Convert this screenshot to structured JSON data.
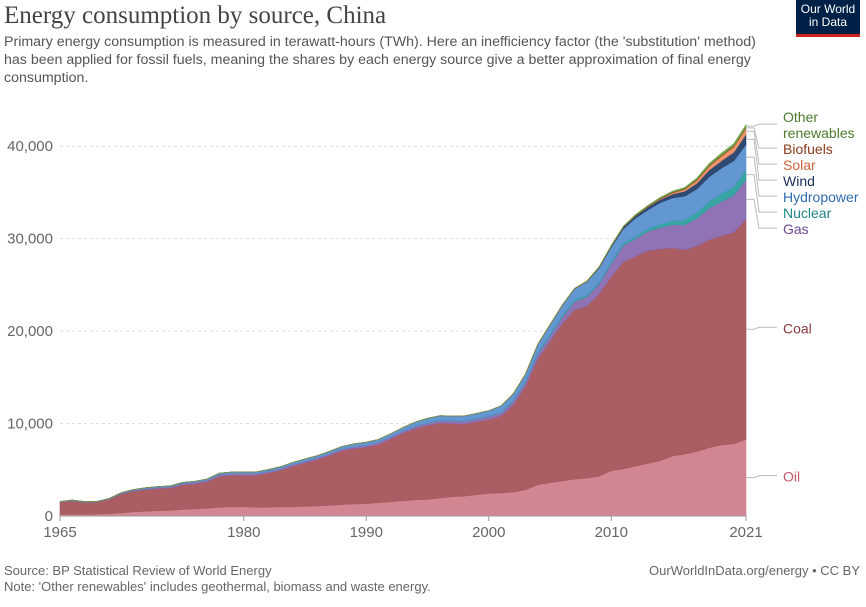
{
  "header": {
    "title": "Energy consumption by source, China",
    "subtitle": "Primary energy consumption is measured in terawatt-hours (TWh). Here an inefficiency factor (the 'substitution' method) has been applied for fossil fuels, meaning the shares by each energy source give a better approximation of final energy consumption."
  },
  "logo": {
    "line1": "Our World",
    "line2": "in Data"
  },
  "footer": {
    "source": "Source: BP Statistical Review of World Energy",
    "note": "Note: 'Other renewables' includes geothermal, biomass and waste energy.",
    "url": "OurWorldInData.org/energy • CC BY"
  },
  "chart_data": {
    "type": "area",
    "stacked": true,
    "title": "Energy consumption by source, China",
    "xlabel": "",
    "ylabel": "",
    "xlim": [
      1965,
      2021
    ],
    "ylim": [
      0,
      45000
    ],
    "x_ticks": [
      1965,
      1980,
      1990,
      2000,
      2010,
      2021
    ],
    "x_tick_labels": [
      "1965",
      "1980",
      "1990",
      "2000",
      "2010",
      "2021"
    ],
    "y_ticks": [
      0,
      10000,
      20000,
      30000,
      40000
    ],
    "y_tick_labels": [
      "0",
      "10,000",
      "20,000",
      "30,000",
      "40,000"
    ],
    "grid": "horizontal dashed",
    "legend_placement": "right, labels at series end",
    "x": [
      1965,
      1966,
      1967,
      1968,
      1969,
      1970,
      1971,
      1972,
      1973,
      1974,
      1975,
      1976,
      1977,
      1978,
      1979,
      1980,
      1981,
      1982,
      1983,
      1984,
      1985,
      1986,
      1987,
      1988,
      1989,
      1990,
      1991,
      1992,
      1993,
      1994,
      1995,
      1996,
      1997,
      1998,
      1999,
      2000,
      2001,
      2002,
      2003,
      2004,
      2005,
      2006,
      2007,
      2008,
      2009,
      2010,
      2011,
      2012,
      2013,
      2014,
      2015,
      2016,
      2017,
      2018,
      2019,
      2020,
      2021
    ],
    "series": [
      {
        "name": "Oil",
        "color": "#cf7f8b",
        "values": [
          150,
          190,
          180,
          200,
          250,
          350,
          450,
          520,
          580,
          620,
          720,
          780,
          850,
          950,
          1000,
          1000,
          950,
          950,
          1000,
          1000,
          1050,
          1100,
          1150,
          1250,
          1300,
          1350,
          1450,
          1550,
          1650,
          1750,
          1800,
          1950,
          2100,
          2150,
          2300,
          2450,
          2500,
          2600,
          2850,
          3400,
          3600,
          3800,
          4000,
          4100,
          4300,
          4900,
          5100,
          5400,
          5700,
          6000,
          6500,
          6700,
          7000,
          7400,
          7700,
          7800,
          8300
        ]
      },
      {
        "name": "Coal",
        "color": "#a5555b",
        "values": [
          1350,
          1450,
          1300,
          1300,
          1550,
          2050,
          2250,
          2350,
          2400,
          2400,
          2650,
          2700,
          2850,
          3350,
          3400,
          3400,
          3450,
          3700,
          3950,
          4400,
          4700,
          5000,
          5400,
          5800,
          6000,
          6100,
          6300,
          6800,
          7300,
          7700,
          8000,
          8100,
          7900,
          7800,
          7900,
          8000,
          8300,
          9400,
          11200,
          13600,
          15300,
          17000,
          18300,
          18600,
          19700,
          21000,
          22400,
          22700,
          23000,
          22900,
          22500,
          22100,
          22200,
          22500,
          22600,
          22900,
          23800
        ]
      },
      {
        "name": "Gas",
        "color": "#8a6bb0",
        "values": [
          20,
          30,
          30,
          30,
          40,
          40,
          60,
          80,
          100,
          120,
          130,
          150,
          170,
          180,
          190,
          180,
          170,
          170,
          160,
          170,
          180,
          190,
          200,
          200,
          210,
          210,
          220,
          230,
          240,
          240,
          250,
          260,
          280,
          290,
          300,
          320,
          350,
          400,
          450,
          500,
          600,
          700,
          900,
          1000,
          1100,
          1400,
          1800,
          1900,
          2100,
          2300,
          2500,
          2700,
          3000,
          3400,
          3700,
          4000,
          4300
        ]
      },
      {
        "name": "Nuclear",
        "color": "#2e9f9f",
        "values": [
          0,
          0,
          0,
          0,
          0,
          0,
          0,
          0,
          0,
          0,
          0,
          0,
          0,
          0,
          0,
          0,
          0,
          0,
          0,
          0,
          0,
          0,
          0,
          0,
          0,
          0,
          0,
          0,
          0,
          40,
          40,
          40,
          40,
          40,
          50,
          50,
          60,
          80,
          120,
          130,
          150,
          160,
          180,
          190,
          190,
          200,
          240,
          260,
          300,
          360,
          450,
          560,
          650,
          770,
          870,
          950,
          1050
        ]
      },
      {
        "name": "Hydropower",
        "color": "#5b91d0",
        "values": [
          40,
          50,
          50,
          50,
          50,
          80,
          100,
          110,
          110,
          110,
          130,
          130,
          130,
          150,
          160,
          180,
          200,
          200,
          220,
          230,
          240,
          240,
          250,
          270,
          300,
          320,
          320,
          330,
          380,
          430,
          480,
          500,
          500,
          550,
          540,
          580,
          700,
          730,
          730,
          920,
          1020,
          1130,
          1210,
          1440,
          1520,
          1590,
          1550,
          1990,
          2020,
          2340,
          2460,
          2550,
          2540,
          2640,
          2760,
          2780,
          2750
        ]
      },
      {
        "name": "Wind",
        "color": "#25406a",
        "values": [
          0,
          0,
          0,
          0,
          0,
          0,
          0,
          0,
          0,
          0,
          0,
          0,
          0,
          0,
          0,
          0,
          0,
          0,
          0,
          0,
          0,
          0,
          0,
          0,
          0,
          0,
          0,
          0,
          0,
          0,
          0,
          0,
          0,
          0,
          0,
          0,
          0,
          0,
          0,
          0,
          0,
          0,
          0,
          20,
          60,
          100,
          170,
          230,
          300,
          340,
          410,
          520,
          620,
          720,
          800,
          920,
          1090
        ]
      },
      {
        "name": "Solar",
        "color": "#ef8f62",
        "values": [
          0,
          0,
          0,
          0,
          0,
          0,
          0,
          0,
          0,
          0,
          0,
          0,
          0,
          0,
          0,
          0,
          0,
          0,
          0,
          0,
          0,
          0,
          0,
          0,
          0,
          0,
          0,
          0,
          0,
          0,
          0,
          0,
          0,
          0,
          0,
          0,
          0,
          0,
          0,
          0,
          0,
          0,
          0,
          0,
          0,
          0,
          0,
          10,
          20,
          60,
          120,
          200,
          300,
          410,
          500,
          570,
          650
        ]
      },
      {
        "name": "Biofuels",
        "color": "#8b4a2b",
        "values": [
          0,
          0,
          0,
          0,
          0,
          0,
          0,
          0,
          0,
          0,
          0,
          0,
          0,
          0,
          0,
          0,
          0,
          0,
          0,
          0,
          0,
          0,
          0,
          0,
          0,
          0,
          0,
          0,
          0,
          0,
          0,
          0,
          0,
          0,
          0,
          0,
          0,
          10,
          20,
          40,
          40,
          40,
          40,
          45,
          50,
          50,
          60,
          60,
          70,
          70,
          80,
          80,
          90,
          90,
          100,
          100,
          100
        ]
      },
      {
        "name": "Other renewables",
        "color": "#6b9e40",
        "values": [
          0,
          0,
          0,
          0,
          0,
          0,
          0,
          0,
          0,
          0,
          0,
          0,
          0,
          0,
          0,
          0,
          0,
          0,
          0,
          0,
          0,
          0,
          0,
          0,
          0,
          0,
          0,
          0,
          0,
          0,
          0,
          0,
          0,
          0,
          0,
          0,
          0,
          0,
          0,
          0,
          0,
          0,
          0,
          20,
          30,
          40,
          60,
          80,
          90,
          100,
          120,
          140,
          170,
          200,
          230,
          250,
          280
        ]
      }
    ],
    "label_order": [
      "Other renewables",
      "Biofuels",
      "Solar",
      "Wind",
      "Hydropower",
      "Nuclear",
      "Gas",
      "Coal",
      "Oil"
    ],
    "label_lines": {
      "Other renewables": [
        "Other",
        "renewables"
      ]
    },
    "label_colors": {
      "Other renewables": "#4c7a2c",
      "Biofuels": "#8b3a1a",
      "Solar": "#d0603a",
      "Wind": "#1a2f5a",
      "Hydropower": "#2f6cb0",
      "Nuclear": "#1f8585",
      "Gas": "#6e4a99",
      "Coal": "#8a3a40",
      "Oil": "#c05866"
    }
  }
}
